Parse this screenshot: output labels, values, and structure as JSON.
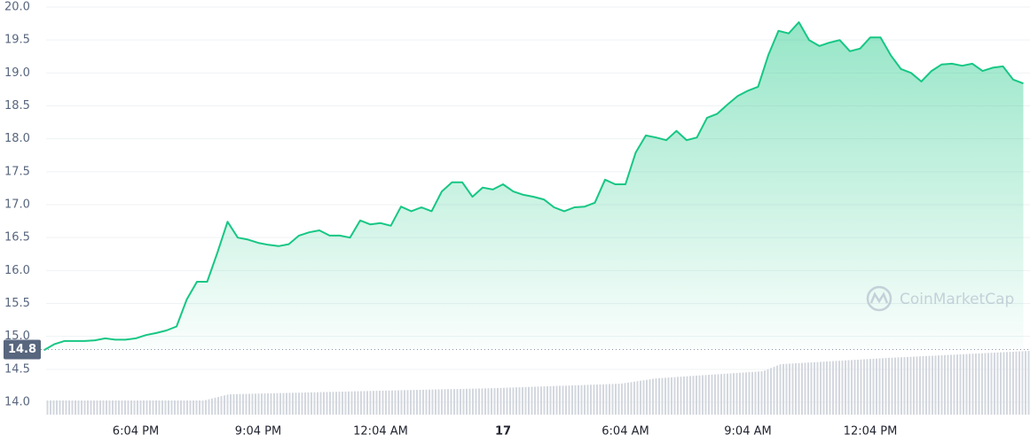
{
  "chart_data": {
    "type": "area-line",
    "categories": [
      null,
      null,
      null,
      null,
      null,
      null,
      null,
      null,
      null,
      "6:04 PM",
      null,
      null,
      null,
      null,
      null,
      null,
      null,
      null,
      null,
      null,
      null,
      "9:04 PM",
      null,
      null,
      null,
      null,
      null,
      null,
      null,
      null,
      null,
      null,
      null,
      "12:04 AM",
      null,
      null,
      null,
      null,
      null,
      null,
      null,
      null,
      null,
      null,
      null,
      "17",
      null,
      null,
      null,
      null,
      null,
      null,
      null,
      null,
      null,
      null,
      null,
      "6:04 AM",
      null,
      null,
      null,
      null,
      null,
      null,
      null,
      null,
      null,
      null,
      null,
      "9:04 AM",
      null,
      null,
      null,
      null,
      null,
      null,
      null,
      null,
      null,
      null,
      null,
      "12:04 PM",
      null,
      null,
      null,
      null,
      null,
      null,
      null,
      null,
      null,
      null,
      null,
      null,
      null,
      null,
      null
    ],
    "values": [
      14.79,
      14.88,
      14.93,
      14.93,
      14.93,
      14.94,
      14.97,
      14.95,
      14.95,
      14.97,
      15.02,
      15.05,
      15.09,
      15.15,
      15.56,
      15.83,
      15.83,
      16.27,
      16.74,
      16.5,
      16.47,
      16.42,
      16.39,
      16.37,
      16.4,
      16.53,
      16.58,
      16.61,
      16.53,
      16.53,
      16.5,
      16.76,
      16.7,
      16.72,
      16.68,
      16.97,
      16.9,
      16.96,
      16.9,
      17.2,
      17.34,
      17.34,
      17.12,
      17.26,
      17.23,
      17.31,
      17.2,
      17.15,
      17.12,
      17.08,
      16.96,
      16.9,
      16.96,
      16.97,
      17.03,
      17.38,
      17.31,
      17.31,
      17.79,
      18.05,
      18.02,
      17.98,
      18.12,
      17.98,
      18.02,
      18.32,
      18.38,
      18.52,
      18.65,
      18.73,
      18.79,
      19.27,
      19.64,
      19.6,
      19.77,
      19.5,
      19.41,
      19.46,
      19.5,
      19.33,
      19.37,
      19.54,
      19.54,
      19.27,
      19.06,
      19.0,
      18.87,
      19.03,
      19.13,
      19.14,
      19.11,
      19.14,
      19.03,
      19.08,
      19.1,
      18.9,
      18.84
    ],
    "color": "#16c784",
    "ylim": [
      14.0,
      20.0
    ],
    "yticks": [
      {
        "value": 14,
        "label": "14.0"
      },
      14.5,
      {
        "value": 15,
        "label": "15.0"
      },
      15.5,
      {
        "value": 16,
        "label": "16.0"
      },
      16.5,
      {
        "value": 17,
        "label": "17.0"
      },
      17.5,
      {
        "value": 18,
        "label": "18.0"
      },
      18.5,
      {
        "value": 19,
        "label": "19.0"
      },
      19.5,
      {
        "value": 20,
        "label": "20.0"
      }
    ],
    "grid": true,
    "reference_line": 14.8,
    "watermark": "CoinMarketCap"
  }
}
